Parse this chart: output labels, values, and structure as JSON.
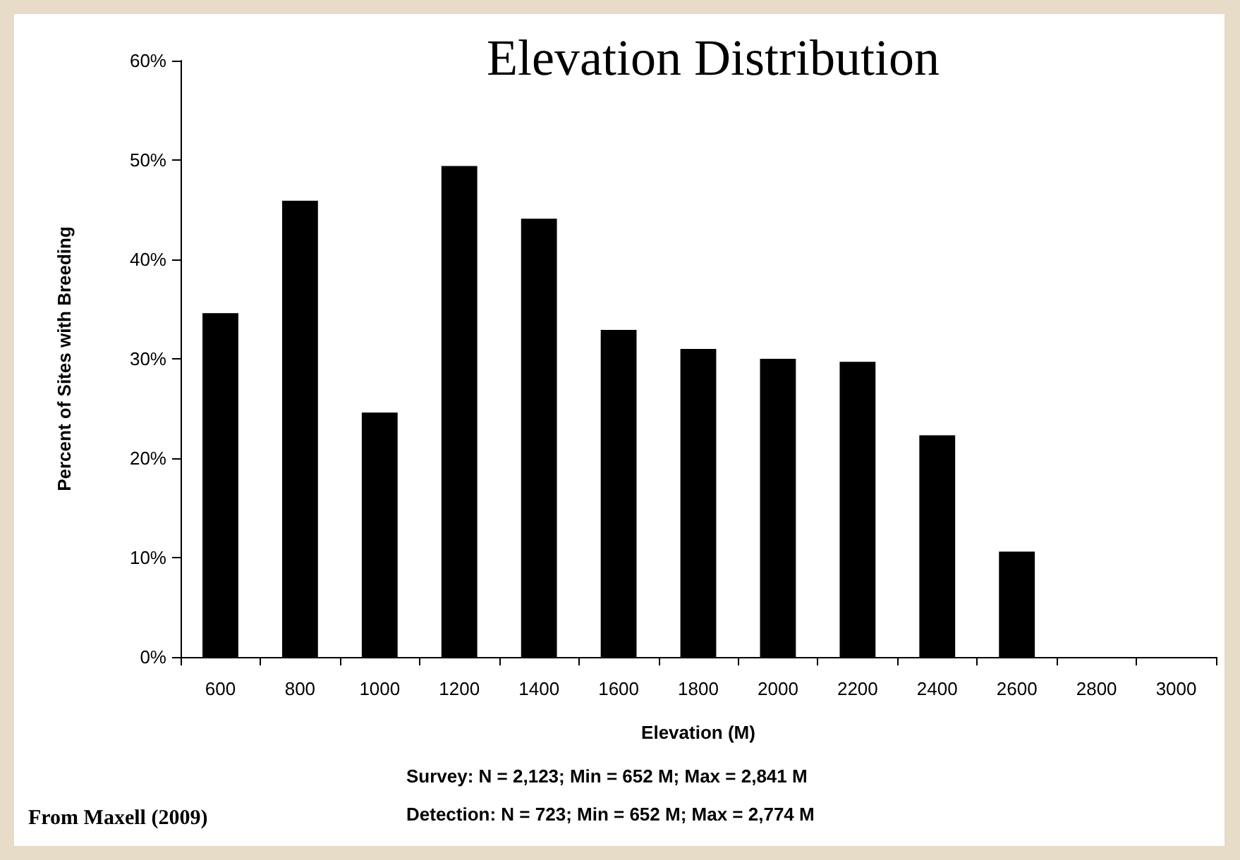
{
  "chart_data": {
    "type": "bar",
    "title": "Elevation Distribution",
    "xlabel": "Elevation (M)",
    "ylabel": "Percent of Sites with Breeding",
    "categories": [
      "600",
      "800",
      "1000",
      "1200",
      "1400",
      "1600",
      "1800",
      "2000",
      "2200",
      "2400",
      "2600",
      "2800",
      "3000"
    ],
    "values": [
      34.6,
      45.9,
      24.6,
      49.4,
      44.1,
      32.9,
      31.0,
      30.0,
      29.7,
      22.3,
      10.6,
      0,
      0
    ],
    "color": "#000000",
    "ylim": [
      0,
      60
    ],
    "yticks": [
      {
        "value": 0,
        "label": "0%"
      },
      {
        "value": 10,
        "label": "10%"
      },
      {
        "value": 20,
        "label": "20%"
      },
      {
        "value": 30,
        "label": "30%"
      },
      {
        "value": 40,
        "label": "40%"
      },
      {
        "value": 50,
        "label": "50%"
      },
      {
        "value": 60,
        "label": "60%"
      }
    ],
    "grid": false,
    "annotations": [
      "Survey: N = 2,123; Min = 652 M; Max = 2,841 M",
      "Detection: N = 723; Min = 652 M; Max = 2,774 M",
      "From Maxell (2009)"
    ]
  }
}
